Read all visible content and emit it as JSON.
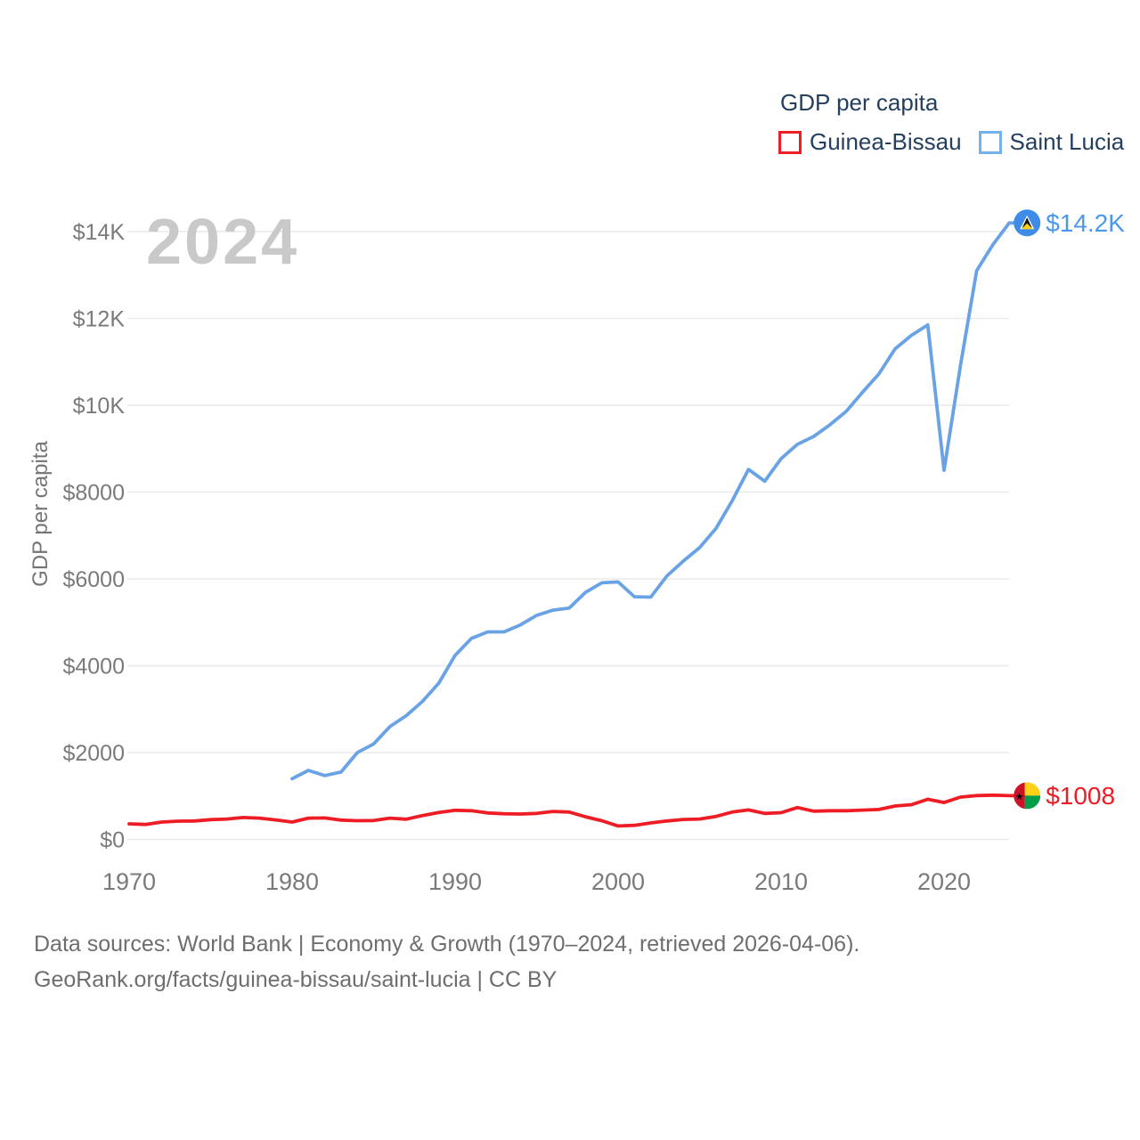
{
  "legend": {
    "title": "GDP per capita",
    "items": [
      {
        "label": "Guinea-Bissau",
        "color": "#ee1c25",
        "icon": "red-outline-square"
      },
      {
        "label": "Saint Lucia",
        "color": "#74b0ee",
        "icon": "blue-outline-square"
      }
    ]
  },
  "watermark": "2024",
  "y_axis": {
    "title": "GDP per capita",
    "ticks": [
      {
        "label": "$0",
        "value": 0
      },
      {
        "label": "$2000",
        "value": 2000
      },
      {
        "label": "$4000",
        "value": 4000
      },
      {
        "label": "$6000",
        "value": 6000
      },
      {
        "label": "$8000",
        "value": 8000
      },
      {
        "label": "$10K",
        "value": 10000
      },
      {
        "label": "$12K",
        "value": 12000
      },
      {
        "label": "$14K",
        "value": 14000
      }
    ]
  },
  "x_axis": {
    "ticks": [
      {
        "label": "1970",
        "value": 1970
      },
      {
        "label": "1980",
        "value": 1980
      },
      {
        "label": "1990",
        "value": 1990
      },
      {
        "label": "2000",
        "value": 2000
      },
      {
        "label": "2010",
        "value": 2010
      },
      {
        "label": "2020",
        "value": 2020
      }
    ]
  },
  "end_labels": [
    {
      "series": "Guinea-Bissau",
      "text": "$1008",
      "color": "#ee1c25",
      "icon": "guinea-bissau-flag-icon"
    },
    {
      "series": "Saint Lucia",
      "text": "$14.2K",
      "color": "#4b97ee",
      "icon": "saint-lucia-flag-icon"
    }
  ],
  "footer": {
    "line1": "Data sources: World Bank | Economy & Growth (1970–2024, retrieved 2026-04-06).",
    "line2": "GeoRank.org/facts/guinea-bissau/saint-lucia | CC BY"
  },
  "chart_data": {
    "type": "line",
    "title": "GDP per capita",
    "xlabel": "",
    "ylabel": "GDP per capita",
    "xlim": [
      1970,
      2024
    ],
    "ylim": [
      0,
      14600
    ],
    "grid": true,
    "legend_position": "top-right",
    "watermark": "2024",
    "x": [
      1970,
      1971,
      1972,
      1973,
      1974,
      1975,
      1976,
      1977,
      1978,
      1979,
      1980,
      1981,
      1982,
      1983,
      1984,
      1985,
      1986,
      1987,
      1988,
      1989,
      1990,
      1991,
      1992,
      1993,
      1994,
      1995,
      1996,
      1997,
      1998,
      1999,
      2000,
      2001,
      2002,
      2003,
      2004,
      2005,
      2006,
      2007,
      2008,
      2009,
      2010,
      2011,
      2012,
      2013,
      2014,
      2015,
      2016,
      2017,
      2018,
      2019,
      2020,
      2021,
      2022,
      2023,
      2024
    ],
    "series": [
      {
        "name": "Guinea-Bissau",
        "color": "#ee1c25",
        "marker": "guinea-bissau-flag-icon",
        "end_label": "$1008",
        "values": [
          360,
          345,
          400,
          420,
          425,
          455,
          470,
          505,
          490,
          450,
          400,
          490,
          495,
          445,
          430,
          435,
          490,
          465,
          550,
          620,
          670,
          660,
          610,
          590,
          585,
          600,
          645,
          630,
          520,
          430,
          310,
          325,
          380,
          425,
          460,
          470,
          530,
          630,
          680,
          600,
          615,
          735,
          650,
          660,
          660,
          675,
          690,
          770,
          800,
          925,
          850,
          975,
          1010,
          1020,
          1008
        ]
      },
      {
        "name": "Saint Lucia",
        "color": "#69a3e6",
        "marker": "saint-lucia-flag-icon",
        "end_label": "$14.2K",
        "values": [
          null,
          null,
          null,
          null,
          null,
          null,
          null,
          null,
          null,
          null,
          1400,
          1590,
          1470,
          1550,
          2000,
          2200,
          2600,
          2850,
          3180,
          3600,
          4240,
          4630,
          4780,
          4780,
          4940,
          5160,
          5280,
          5330,
          5690,
          5910,
          5930,
          5590,
          5580,
          6070,
          6410,
          6720,
          7160,
          7800,
          8520,
          8250,
          8770,
          9100,
          9280,
          9550,
          9860,
          10300,
          10720,
          11300,
          11610,
          11850,
          8500,
          10900,
          13100,
          13700,
          14200
        ]
      }
    ]
  }
}
